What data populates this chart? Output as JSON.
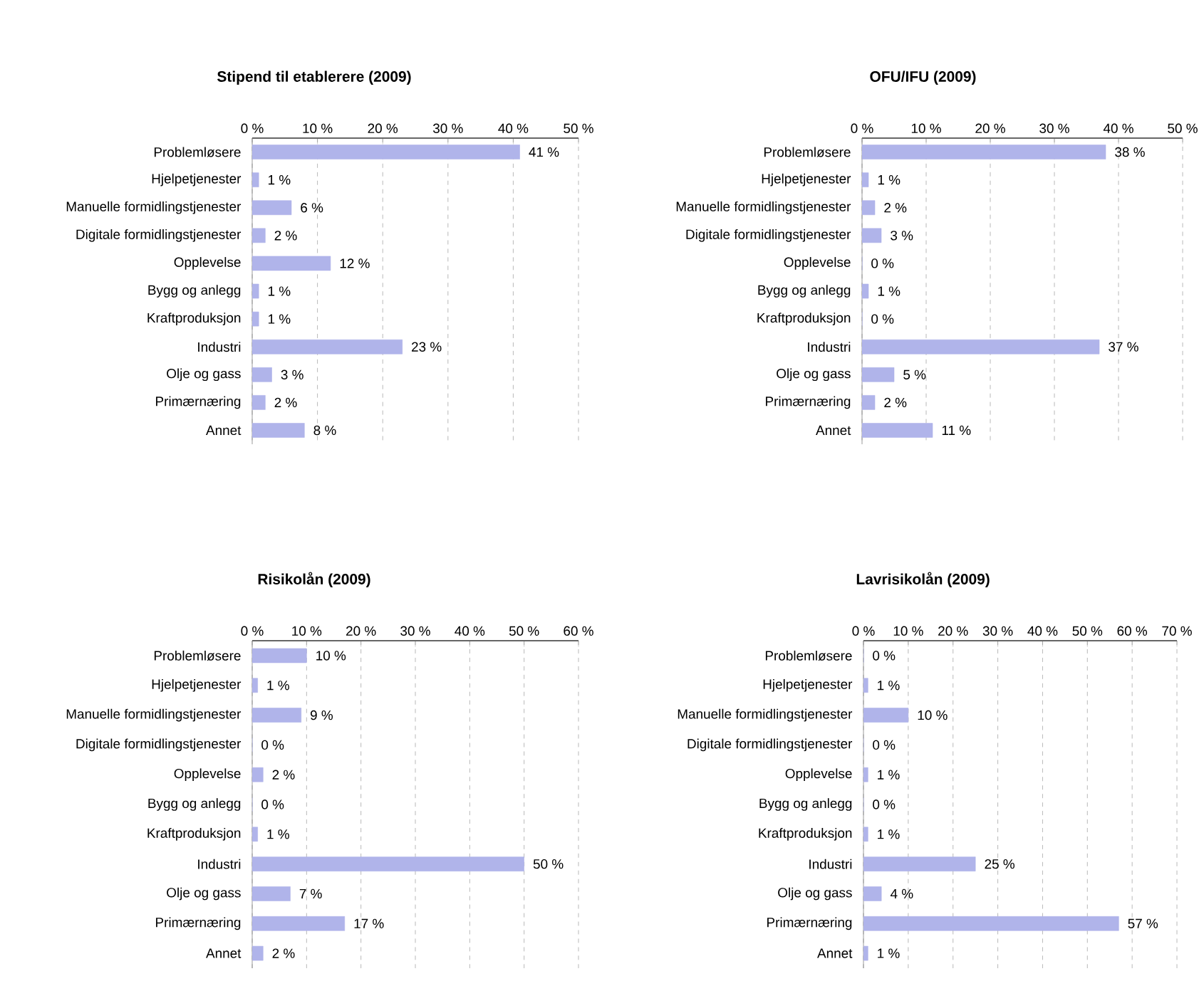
{
  "chart_data": [
    {
      "type": "bar",
      "orientation": "horizontal",
      "title": "Stipend til etablerere (2009)",
      "categories": [
        "Problemløsere",
        "Hjelpetjenester",
        "Manuelle formidlingstjenester",
        "Digitale formidlingstjenester",
        "Opplevelse",
        "Bygg og anlegg",
        "Kraftproduksjon",
        "Industri",
        "Olje og gass",
        "Primærnæring",
        "Annet"
      ],
      "values": [
        41,
        1,
        6,
        2,
        12,
        1,
        1,
        23,
        3,
        2,
        8
      ],
      "value_labels": [
        "41 %",
        "1 %",
        "6 %",
        "2 %",
        "12 %",
        "1 %",
        "1 %",
        "23 %",
        "3 %",
        "2 %",
        "8 %"
      ],
      "color": "#b0b4ea",
      "xlim": [
        0,
        50
      ],
      "xticks": [
        {
          "value": 0,
          "label": "0 %"
        },
        {
          "value": 10,
          "label": "10 %"
        },
        {
          "value": 20,
          "label": "20 %"
        },
        {
          "value": 30,
          "label": "30 %"
        },
        {
          "value": 40,
          "label": "40 %"
        },
        {
          "value": 50,
          "label": "50 %"
        }
      ],
      "grid": "x"
    },
    {
      "type": "bar",
      "orientation": "horizontal",
      "title": "OFU/IFU (2009)",
      "categories": [
        "Problemløsere",
        "Hjelpetjenester",
        "Manuelle formidlingstjenester",
        "Digitale formidlingstjenester",
        "Opplevelse",
        "Bygg og anlegg",
        "Kraftproduksjon",
        "Industri",
        "Olje og gass",
        "Primærnæring",
        "Annet"
      ],
      "values": [
        38,
        1,
        2,
        3,
        0,
        1,
        0,
        37,
        5,
        2,
        11
      ],
      "value_labels": [
        "38 %",
        "1 %",
        "2 %",
        "3 %",
        "0 %",
        "1 %",
        "0 %",
        "37 %",
        "5 %",
        "2 %",
        "11 %"
      ],
      "color": "#b0b4ea",
      "xlim": [
        0,
        50
      ],
      "xticks": [
        {
          "value": 0,
          "label": "0 %"
        },
        {
          "value": 10,
          "label": "10 %"
        },
        {
          "value": 20,
          "label": "20 %"
        },
        {
          "value": 30,
          "label": "30 %"
        },
        {
          "value": 40,
          "label": "40 %"
        },
        {
          "value": 50,
          "label": "50 %"
        }
      ],
      "grid": "x"
    },
    {
      "type": "bar",
      "orientation": "horizontal",
      "title": "Risikolån (2009)",
      "categories": [
        "Problemløsere",
        "Hjelpetjenester",
        "Manuelle formidlingstjenester",
        "Digitale formidlingstjenester",
        "Opplevelse",
        "Bygg og anlegg",
        "Kraftproduksjon",
        "Industri",
        "Olje og gass",
        "Primærnæring",
        "Annet"
      ],
      "values": [
        10,
        1,
        9,
        0,
        2,
        0,
        1,
        50,
        7,
        17,
        2
      ],
      "value_labels": [
        "10 %",
        "1 %",
        "9 %",
        "0 %",
        "2 %",
        "0 %",
        "1 %",
        "50 %",
        "7 %",
        "17 %",
        "2 %"
      ],
      "color": "#b0b4ea",
      "xlim": [
        0,
        60
      ],
      "xticks": [
        {
          "value": 0,
          "label": "0 %"
        },
        {
          "value": 10,
          "label": "10 %"
        },
        {
          "value": 20,
          "label": "20 %"
        },
        {
          "value": 30,
          "label": "30 %"
        },
        {
          "value": 40,
          "label": "40 %"
        },
        {
          "value": 50,
          "label": "50 %"
        },
        {
          "value": 60,
          "label": "60 %"
        }
      ],
      "grid": "x"
    },
    {
      "type": "bar",
      "orientation": "horizontal",
      "title": "Lavrisikolån (2009)",
      "categories": [
        "Problemløsere",
        "Hjelpetjenester",
        "Manuelle formidlingstjenester",
        "Digitale formidlingstjenester",
        "Opplevelse",
        "Bygg og anlegg",
        "Kraftproduksjon",
        "Industri",
        "Olje og gass",
        "Primærnæring",
        "Annet"
      ],
      "values": [
        0,
        1,
        10,
        0,
        1,
        0,
        1,
        25,
        4,
        57,
        1
      ],
      "value_labels": [
        "0 %",
        "1 %",
        "10 %",
        "0 %",
        "1 %",
        "0 %",
        "1 %",
        "25 %",
        "4 %",
        "57 %",
        "1 %"
      ],
      "color": "#b0b4ea",
      "xlim": [
        0,
        70
      ],
      "xticks": [
        {
          "value": 0,
          "label": "0 %"
        },
        {
          "value": 10,
          "label": "10 %"
        },
        {
          "value": 20,
          "label": "20 %"
        },
        {
          "value": 30,
          "label": "30 %"
        },
        {
          "value": 40,
          "label": "40 %"
        },
        {
          "value": 50,
          "label": "50 %"
        },
        {
          "value": 60,
          "label": "60 %"
        },
        {
          "value": 70,
          "label": "70 %"
        }
      ],
      "grid": "x"
    }
  ]
}
